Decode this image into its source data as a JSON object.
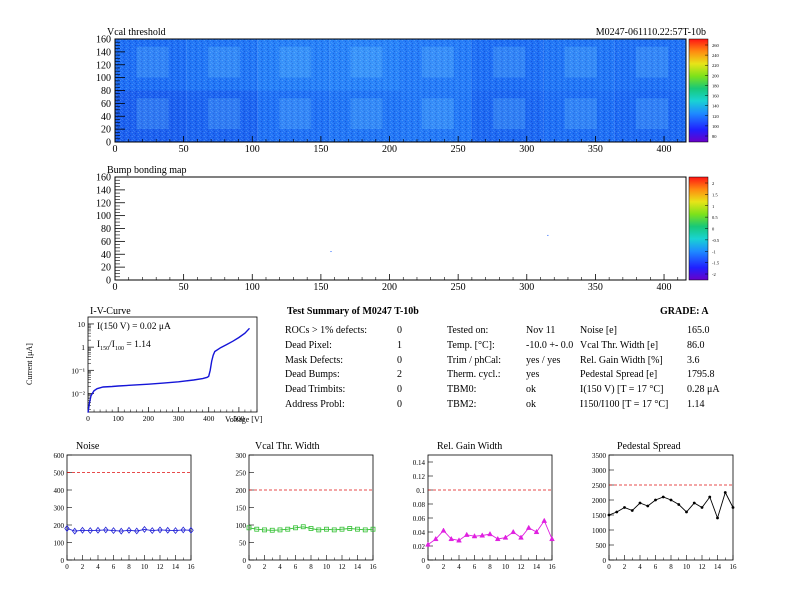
{
  "header": {
    "left_title": "Vcal threshold",
    "right_title": "M0247-061110.22:57T-10b"
  },
  "vcal_map": {
    "type": "heatmap",
    "x_range": [
      0,
      416
    ],
    "y_range": [
      0,
      160
    ],
    "x_ticks": [
      "0",
      "50",
      "100",
      "150",
      "200",
      "250",
      "300",
      "350",
      "400"
    ],
    "y_ticks": [
      "0",
      "20",
      "40",
      "60",
      "80",
      "100",
      "120",
      "140",
      "160"
    ],
    "palette_ticks": [
      "260",
      "240",
      "220",
      "200",
      "180",
      "160",
      "140",
      "120",
      "100",
      "80"
    ],
    "roc_means": [
      [
        0.3,
        0.32,
        0.38,
        0.4,
        0.42,
        0.33,
        0.36,
        0.34
      ],
      [
        0.36,
        0.4,
        0.46,
        0.48,
        0.44,
        0.36,
        0.4,
        0.38
      ]
    ]
  },
  "bump_map": {
    "title": "Bump bonding map",
    "x_ticks": [
      "0",
      "50",
      "100",
      "150",
      "200",
      "250",
      "300",
      "350",
      "400"
    ],
    "y_ticks": [
      "0",
      "20",
      "40",
      "60",
      "80",
      "100",
      "120",
      "140",
      "160"
    ],
    "palette_ticks": [
      "2",
      "1.5",
      "1",
      "0.5",
      "0",
      "-0.5",
      "-1",
      "-1.5",
      "-2"
    ],
    "dead_bumps": [
      [
        157,
        45
      ],
      [
        315,
        70
      ]
    ]
  },
  "iv": {
    "type": "line",
    "title": "I-V-Curve",
    "xlabel": "Voltage [V]",
    "ylabel": "Current [μA]",
    "annotation_1": "I(150 V) = 0.02 μA",
    "annotation_2_main": "I",
    "annotation_2_sub1": "150",
    "annotation_2_mid": "/I",
    "annotation_2_sub2": "100",
    "annotation_2_tail": " = 1.14",
    "x_ticks": [
      "0",
      "100",
      "200",
      "300",
      "400",
      "500"
    ],
    "y_ticks": [
      "10",
      "1",
      "10⁻¹",
      "10⁻²"
    ],
    "xlim": [
      0,
      560
    ],
    "ylog_range": [
      -2.8,
      1.3
    ],
    "x": [
      0,
      5,
      10,
      20,
      30,
      50,
      80,
      100,
      150,
      200,
      250,
      300,
      350,
      380,
      395,
      400,
      405,
      410,
      415,
      420,
      440,
      460,
      480,
      500,
      520,
      535
    ],
    "y": [
      0.0015,
      0.004,
      0.008,
      0.013,
      0.016,
      0.019,
      0.02,
      0.021,
      0.023,
      0.025,
      0.028,
      0.032,
      0.038,
      0.044,
      0.05,
      0.055,
      0.1,
      0.25,
      0.45,
      0.65,
      0.95,
      1.3,
      1.8,
      2.6,
      4.0,
      6.5
    ]
  },
  "summary": {
    "title": "Test Summary of M0247   T-10b",
    "grade_label": "GRADE:  A",
    "col1_labels": [
      "ROCs > 1% defects:",
      "Dead Pixel:",
      "Mask Defects:",
      "Dead Bumps:",
      "Dead Trimbits:",
      "Address Probl:"
    ],
    "col1_values": [
      "0",
      "1",
      "0",
      "2",
      "0",
      "0"
    ],
    "col2_labels": [
      "Tested on:",
      "Temp. [°C]:",
      "Trim / phCal:",
      "Therm. cycl.:",
      "TBM0:",
      "TBM2:"
    ],
    "col2_values": [
      "Nov 11",
      "-10.0 +- 0.0",
      "yes / yes",
      "yes",
      "ok",
      "ok"
    ],
    "col3_labels": [
      "Noise [e]",
      "Vcal Thr. Width [e]",
      "Rel. Gain Width [%]",
      "Pedestal Spread [e]",
      "I(150 V) [T = 17 °C]",
      "I150/I100  [T = 17 °C]"
    ],
    "col3_values": [
      "165.0",
      "86.0",
      "3.6",
      "1795.8",
      "0.28 μA",
      "1.14"
    ]
  },
  "chart_data": [
    {
      "type": "line",
      "title": "Noise",
      "x": [
        0,
        1,
        2,
        3,
        4,
        5,
        6,
        7,
        8,
        9,
        10,
        11,
        12,
        13,
        14,
        15,
        16
      ],
      "values": [
        180,
        165,
        170,
        168,
        170,
        172,
        168,
        165,
        170,
        166,
        175,
        168,
        172,
        170,
        168,
        172,
        170
      ],
      "ylim": [
        0,
        600
      ],
      "xlim": [
        0,
        16
      ],
      "y_ticks": [
        "0",
        "100",
        "200",
        "300",
        "400",
        "500",
        "600"
      ],
      "x_ticks": [
        "0",
        "2",
        "4",
        "6",
        "8",
        "10",
        "12",
        "14",
        "16"
      ],
      "threshold": 500,
      "color": "#2323d6",
      "marker": "diamond"
    },
    {
      "type": "line",
      "title": "Vcal Thr. Width",
      "x": [
        0,
        1,
        2,
        3,
        4,
        5,
        6,
        7,
        8,
        9,
        10,
        11,
        12,
        13,
        14,
        15,
        16
      ],
      "values": [
        92,
        88,
        86,
        85,
        86,
        88,
        92,
        95,
        90,
        86,
        88,
        86,
        88,
        90,
        88,
        86,
        88
      ],
      "ylim": [
        0,
        300
      ],
      "xlim": [
        0,
        16
      ],
      "y_ticks": [
        "0",
        "50",
        "100",
        "150",
        "200",
        "250",
        "300"
      ],
      "x_ticks": [
        "0",
        "2",
        "4",
        "6",
        "8",
        "10",
        "12",
        "14",
        "16"
      ],
      "threshold": 200,
      "color": "#33c033",
      "marker": "square"
    },
    {
      "type": "line",
      "title": "Rel. Gain Width",
      "x": [
        0,
        1,
        2,
        3,
        4,
        5,
        6,
        7,
        8,
        9,
        10,
        11,
        12,
        13,
        14,
        15,
        16
      ],
      "values": [
        0.022,
        0.03,
        0.042,
        0.03,
        0.028,
        0.036,
        0.034,
        0.035,
        0.037,
        0.03,
        0.032,
        0.04,
        0.032,
        0.046,
        0.04,
        0.056,
        0.03
      ],
      "ylim": [
        0,
        0.15
      ],
      "xlim": [
        0,
        16
      ],
      "y_ticks": [
        "0",
        "0.02",
        "0.04",
        "0.06",
        "0.08",
        "0.1",
        "0.12",
        "0.14"
      ],
      "x_ticks": [
        "0",
        "2",
        "4",
        "6",
        "8",
        "10",
        "12",
        "14",
        "16"
      ],
      "threshold": 0.1,
      "color": "#e020e0",
      "marker": "triangle"
    },
    {
      "type": "line",
      "title": "Pedestal Spread",
      "x": [
        0,
        1,
        2,
        3,
        4,
        5,
        6,
        7,
        8,
        9,
        10,
        11,
        12,
        13,
        14,
        15,
        16
      ],
      "values": [
        1500,
        1600,
        1750,
        1650,
        1900,
        1800,
        2000,
        2100,
        2000,
        1850,
        1600,
        1900,
        1750,
        2100,
        1400,
        2250,
        1750
      ],
      "ylim": [
        0,
        3500
      ],
      "xlim": [
        0,
        16
      ],
      "y_ticks": [
        "0",
        "500",
        "1000",
        "1500",
        "2000",
        "2500",
        "3000",
        "3500"
      ],
      "x_ticks": [
        "0",
        "2",
        "4",
        "6",
        "8",
        "10",
        "12",
        "14",
        "16"
      ],
      "threshold": 2500,
      "color": "#000000",
      "marker": "dot"
    }
  ]
}
